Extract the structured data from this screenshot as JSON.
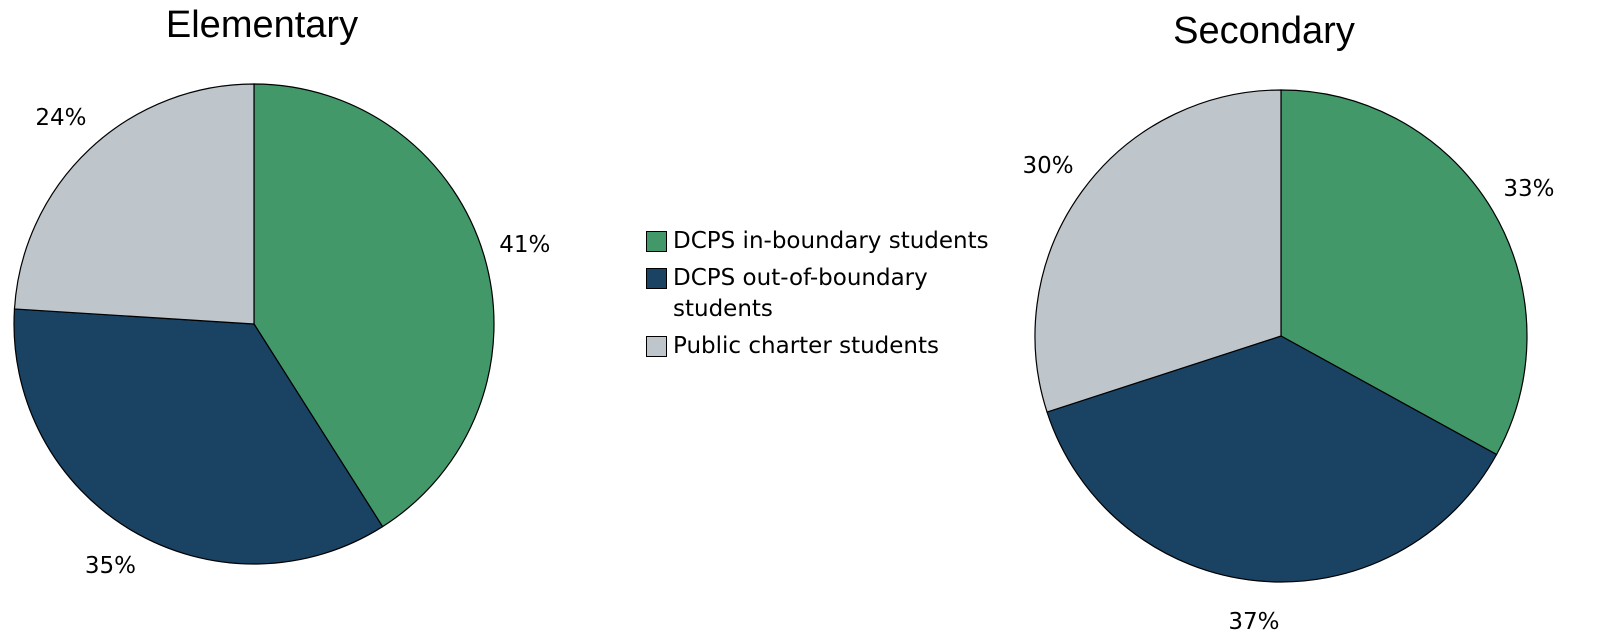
{
  "chart_data": [
    {
      "type": "pie",
      "title": "Elementary",
      "categories": [
        "DCPS in-boundary students",
        "DCPS out-of-boundary students",
        "Public charter students"
      ],
      "values": [
        41,
        35,
        24
      ],
      "value_labels": [
        "41%",
        "35%",
        "24%"
      ],
      "colors": [
        "#43986a",
        "#194263",
        "#bec6cc"
      ]
    },
    {
      "type": "pie",
      "title": "Secondary",
      "categories": [
        "DCPS in-boundary students",
        "DCPS out-of-boundary students",
        "Public charter students"
      ],
      "values": [
        33,
        37,
        30
      ],
      "value_labels": [
        "33%",
        "37%",
        "30%"
      ],
      "colors": [
        "#43986a",
        "#194263",
        "#bec6cc"
      ]
    }
  ]
}
